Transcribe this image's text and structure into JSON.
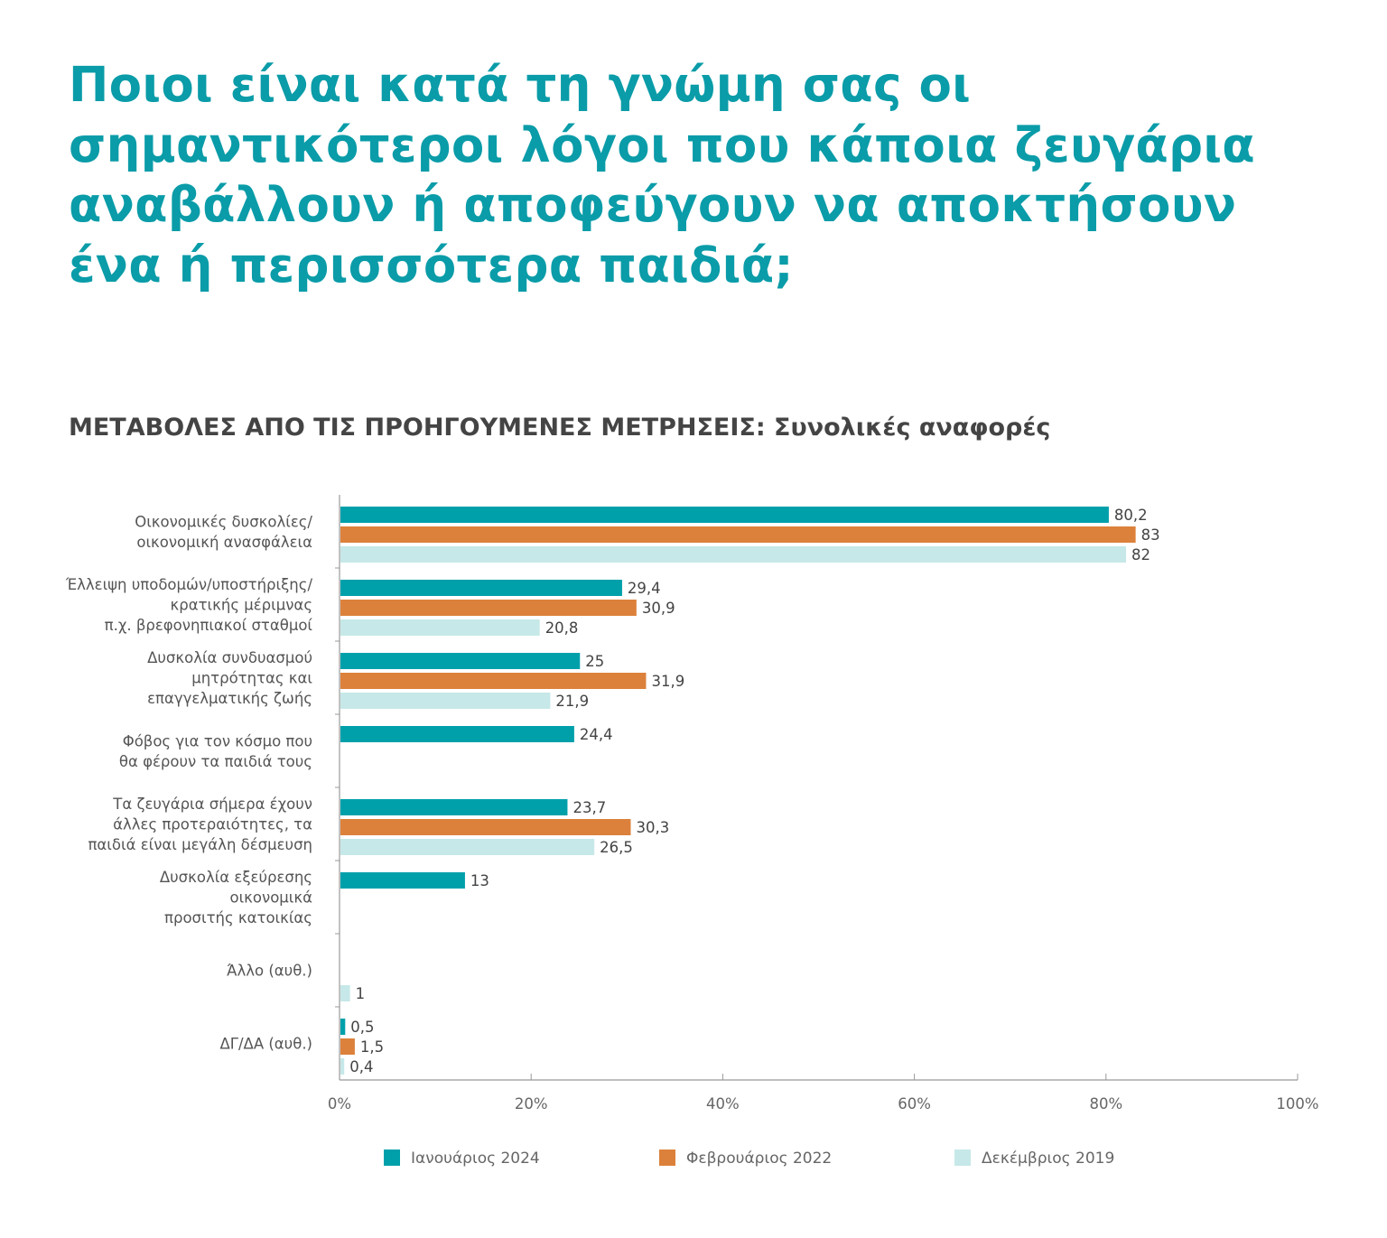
{
  "title": "Ποιοι είναι κατά τη γνώμη σας οι σημαντικότεροι λόγοι που κάποια ζευγάρια αναβάλλουν ή αποφεύγουν να αποκτήσουν ένα ή περισσότερα παιδιά;",
  "chart_data": {
    "type": "bar",
    "orientation": "horizontal",
    "title": "ΜΕΤΑΒΟΛΕΣ ΑΠΟ ΤΙΣ ΠΡΟΗΓΟΥΜΕΝΕΣ ΜΕΤΡΗΣΕΙΣ: Συνολικές αναφορές",
    "categories": [
      [
        "Οικονομικές δυσκολίες/",
        "οικονομική ανασφάλεια"
      ],
      [
        "Έλλειψη υποδομών/υποστήριξης/",
        "κρατικής  μέριμνας",
        "π.χ. βρεφονηπιακοί σταθμοί"
      ],
      [
        "Δυσκολία συνδυασμού",
        "μητρότητας και",
        "επαγγελματικής ζωής"
      ],
      [
        "Φόβος για τον κόσμο που",
        "θα φέρουν τα παιδιά τους"
      ],
      [
        "Τα ζευγάρια σήμερα έχουν",
        "άλλες προτεραιότητες, τα",
        "παιδιά είναι μεγάλη δέσμευση"
      ],
      [
        "Δυσκολία εξεύρεσης",
        "οικονομικά",
        "προσιτής κατοικίας"
      ],
      [
        "Άλλο (αυθ.)"
      ],
      [
        "ΔΓ/ΔΑ (αυθ.)"
      ]
    ],
    "series": [
      {
        "name": "Ιανουάριος 2024",
        "color": "#00a0ab",
        "values": [
          80.2,
          29.4,
          25,
          24.4,
          23.7,
          13,
          null,
          0.5
        ],
        "labels": [
          "80,2",
          "29,4",
          "25",
          "24,4",
          "23,7",
          "13",
          null,
          "0,5"
        ]
      },
      {
        "name": "Φεβρουάριος 2022",
        "color": "#dc813b",
        "values": [
          83,
          30.9,
          31.9,
          null,
          30.3,
          null,
          null,
          1.5
        ],
        "labels": [
          "83",
          "30,9",
          "31,9",
          null,
          "30,3",
          null,
          null,
          "1,5"
        ]
      },
      {
        "name": "Δεκέμβριος 2019",
        "color": "#c6e8e8",
        "values": [
          82,
          20.8,
          21.9,
          null,
          26.5,
          null,
          1,
          0.4
        ],
        "labels": [
          "82",
          "20,8",
          "21,9",
          null,
          "26,5",
          null,
          "1",
          "0,4"
        ]
      }
    ],
    "xlim": [
      0,
      100
    ],
    "xticks": [
      "0%",
      "20%",
      "40%",
      "60%",
      "80%",
      "100%"
    ],
    "xtick_values": [
      0,
      20,
      40,
      60,
      80,
      100
    ],
    "grid": false,
    "legend_position": "bottom"
  }
}
